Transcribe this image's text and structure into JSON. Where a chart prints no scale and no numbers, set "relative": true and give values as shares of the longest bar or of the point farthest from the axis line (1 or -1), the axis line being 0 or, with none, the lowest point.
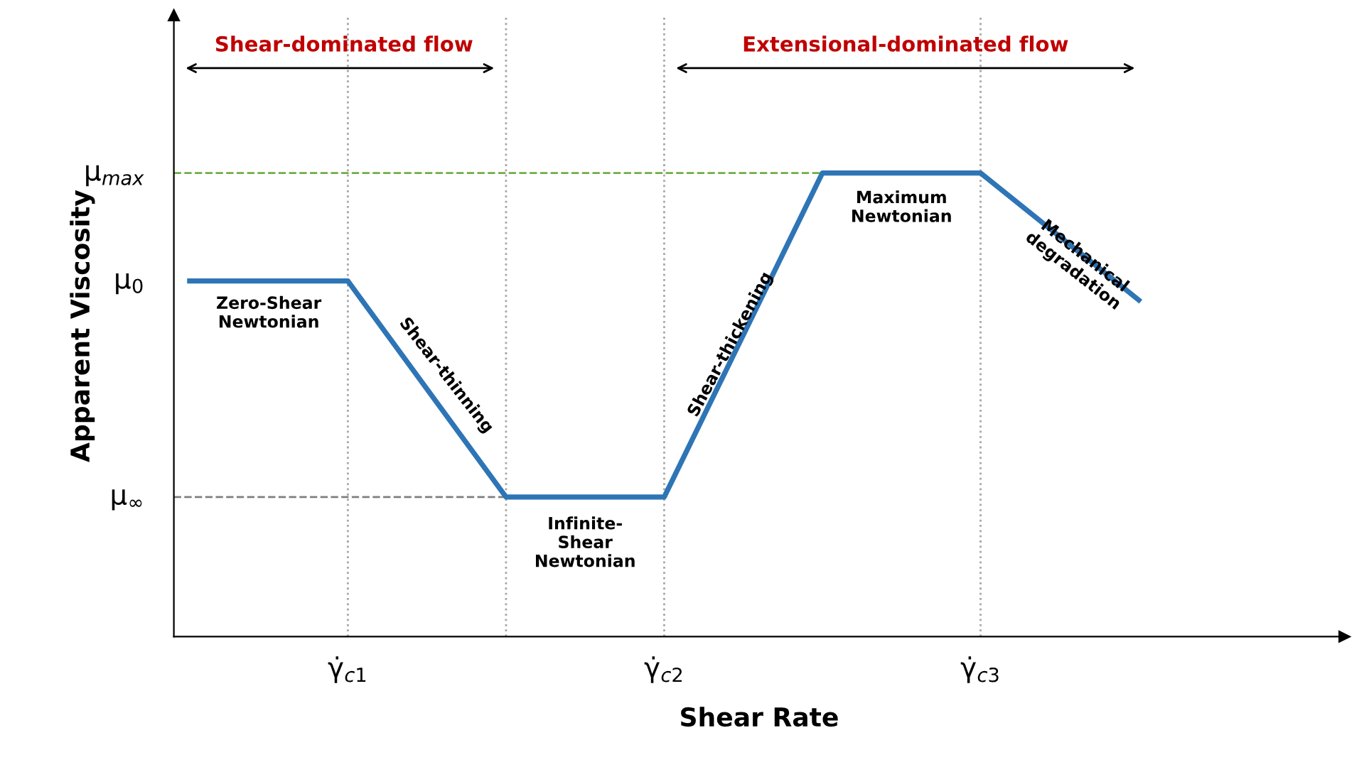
{
  "chart_data": {
    "type": "line",
    "relative": true,
    "xlabel": "Shear Rate",
    "ylabel": "Apparent Viscosity",
    "categories": [
      null,
      "γ̇$_{c1}$",
      null,
      "γ̇$_{c2}$",
      null,
      "γ̇$_{c3}$",
      null
    ],
    "series": [
      {
        "color": "#2e75b6",
        "values": [
          0.767,
          0.767,
          0.301,
          0.301,
          1,
          1,
          0.726
        ]
      }
    ],
    "grid": "x",
    "legend": false,
    "marker": "none",
    "line_style": "solid",
    "ref_lines": [
      {
        "axis": "y",
        "value": 1,
        "label": "μ$_{max}$",
        "color": "#70ad47",
        "line_style": "dashed"
      },
      {
        "axis": "y",
        "value": 0.301,
        "label": "μ$_{∞}$",
        "color": "#7f7f7f",
        "line_style": "dashed"
      }
    ],
    "annotations": [
      "Shear-dominated flow",
      "Extensional-dominated flow",
      "Zero-Shear\nNewtonian",
      "Shear-thinning",
      "Infinite-\nShear\nNewtonian",
      "Shear-thickening",
      "Maximum\nNewtonian",
      "Mechanical\ndegradation",
      "μ$_{0}$"
    ]
  }
}
